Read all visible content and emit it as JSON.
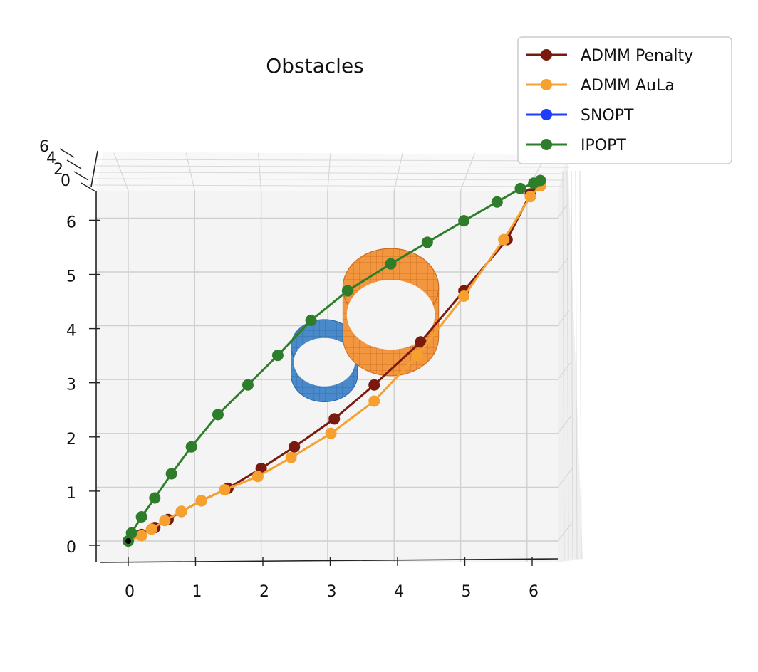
{
  "chart_data": {
    "type": "line",
    "title": "Obstacles",
    "xlabel": "",
    "ylabel": "",
    "xlim": [
      -0.4,
      6.45
    ],
    "ylim": [
      -0.4,
      6.5
    ],
    "xticks": [
      0,
      1,
      2,
      3,
      4,
      5,
      6
    ],
    "yticks": [
      0,
      1,
      2,
      3,
      4,
      5,
      6
    ],
    "zticks": [
      0,
      2,
      4,
      6
    ],
    "grid": true,
    "legend_position": "top-right",
    "series": [
      {
        "name": "ADMM Penalty",
        "color": "#7a1a0f",
        "x": [
          0,
          0.2,
          0.4,
          0.6,
          0.8,
          1.1,
          1.5,
          2.0,
          2.5,
          3.1,
          3.7,
          4.4,
          5.05,
          5.7,
          6.05,
          6.2
        ],
        "y": [
          0,
          0.12,
          0.25,
          0.4,
          0.55,
          0.75,
          0.98,
          1.35,
          1.75,
          2.27,
          2.9,
          3.7,
          4.65,
          5.6,
          6.45,
          6.6
        ]
      },
      {
        "name": "ADMM AuLa",
        "color": "#f5a02f",
        "x": [
          0,
          0.2,
          0.35,
          0.55,
          0.8,
          1.1,
          1.45,
          1.95,
          2.45,
          3.05,
          3.7,
          4.35,
          5.05,
          5.65,
          6.05,
          6.2
        ],
        "y": [
          0,
          0.1,
          0.22,
          0.38,
          0.55,
          0.75,
          0.95,
          1.2,
          1.55,
          2.0,
          2.6,
          3.45,
          4.55,
          5.6,
          6.4,
          6.6
        ]
      },
      {
        "name": "SNOPT",
        "color": "#1f3dff",
        "x": [],
        "y": []
      },
      {
        "name": "IPOPT",
        "color": "#2e7d2a",
        "x": [
          0,
          0.05,
          0.2,
          0.4,
          0.65,
          0.95,
          1.35,
          1.8,
          2.25,
          2.75,
          3.3,
          3.95,
          4.5,
          5.05,
          5.55,
          5.9,
          6.1,
          6.2
        ],
        "y": [
          0,
          0.15,
          0.45,
          0.8,
          1.25,
          1.75,
          2.35,
          2.9,
          3.45,
          4.1,
          4.65,
          5.15,
          5.55,
          5.95,
          6.3,
          6.55,
          6.65,
          6.7
        ]
      }
    ],
    "obstacles": [
      {
        "name": "small cylinder",
        "color": "#3d7fbf",
        "cx": 2.95,
        "cy": 3.35,
        "r": 0.5
      },
      {
        "name": "large cylinder",
        "color": "#f08a2e",
        "cx": 3.95,
        "cy": 4.45,
        "r": 0.72
      }
    ]
  }
}
